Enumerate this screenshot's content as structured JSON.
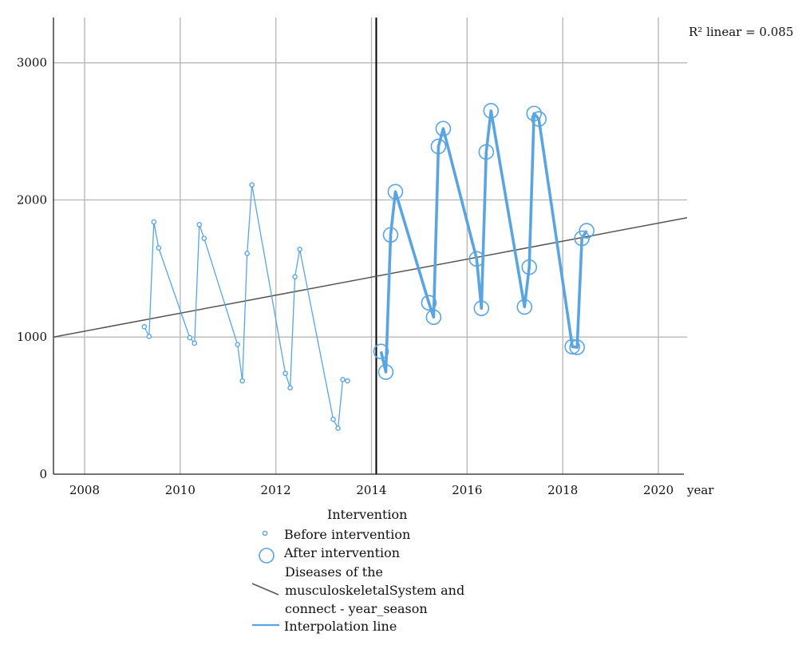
{
  "chart_data": {
    "type": "scatter",
    "xlabel": "year",
    "ylabel": "",
    "xlim": [
      2007.35,
      2020.6
    ],
    "ylim": [
      0,
      3330
    ],
    "x_ticks": [
      2008,
      2010,
      2012,
      2014,
      2016,
      2018,
      2020
    ],
    "y_ticks": [
      0,
      1000,
      2000,
      3000
    ],
    "grid": true,
    "intervention_x": 2014.1,
    "r2_label": "R² linear = 0.085",
    "colors": {
      "points": "#5aa5e1",
      "fit": "#555555",
      "grid": "#b8b8b8",
      "intervention_line": "#000000"
    },
    "fit_line": {
      "x": [
        2007.35,
        2020.6
      ],
      "y": [
        1000,
        1870
      ]
    },
    "series": [
      {
        "name": "Before intervention",
        "marker": "small-circle",
        "x": [
          2009.25,
          2009.35,
          2009.45,
          2009.55,
          2010.2,
          2010.3,
          2010.4,
          2010.5,
          2011.2,
          2011.3,
          2011.4,
          2011.5,
          2012.2,
          2012.3,
          2012.4,
          2012.5,
          2013.2,
          2013.3,
          2013.4,
          2013.5
        ],
        "y": [
          1075,
          1005,
          1840,
          1650,
          995,
          955,
          1820,
          1720,
          945,
          680,
          1610,
          2110,
          735,
          630,
          1440,
          1640,
          400,
          335,
          690,
          680
        ]
      },
      {
        "name": "After intervention",
        "marker": "large-circle",
        "x": [
          2014.2,
          2014.3,
          2014.4,
          2014.5,
          2015.2,
          2015.3,
          2015.4,
          2015.5,
          2016.2,
          2016.3,
          2016.4,
          2016.5,
          2017.2,
          2017.3,
          2017.4,
          2017.5,
          2018.2,
          2018.3,
          2018.4,
          2018.5
        ],
        "y": [
          895,
          745,
          1745,
          2060,
          1250,
          1145,
          2390,
          2520,
          1570,
          1210,
          2350,
          2650,
          1220,
          1510,
          2630,
          2590,
          930,
          925,
          1720,
          1775
        ]
      }
    ]
  },
  "legend": {
    "title": "Intervention",
    "items": {
      "before": "Before intervention",
      "after": "After intervention",
      "fit_line1": "Diseases of the",
      "fit_line2": "musculoskeletalSystem and",
      "fit_line3": "connect - year_season",
      "interp": "Interpolation line"
    }
  }
}
